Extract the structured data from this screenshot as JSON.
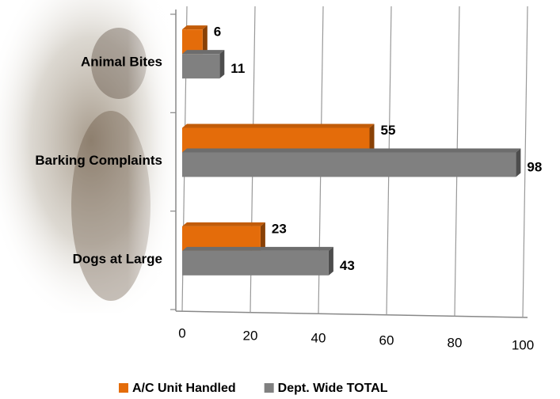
{
  "chart_data": {
    "type": "bar",
    "orientation": "horizontal",
    "categories": [
      "Animal Bites",
      "Barking Complaints",
      "Dogs at Large"
    ],
    "series": [
      {
        "name": "A/C Unit Handled",
        "color": "#e46c0a",
        "values": [
          6,
          55,
          23
        ]
      },
      {
        "name": "Dept. Wide TOTAL",
        "color": "#808080",
        "values": [
          11,
          98,
          43
        ]
      }
    ],
    "xlim": [
      0,
      100
    ],
    "xticks": [
      0,
      20,
      40,
      60,
      80,
      100
    ],
    "grid": true,
    "legend": "bottom"
  }
}
